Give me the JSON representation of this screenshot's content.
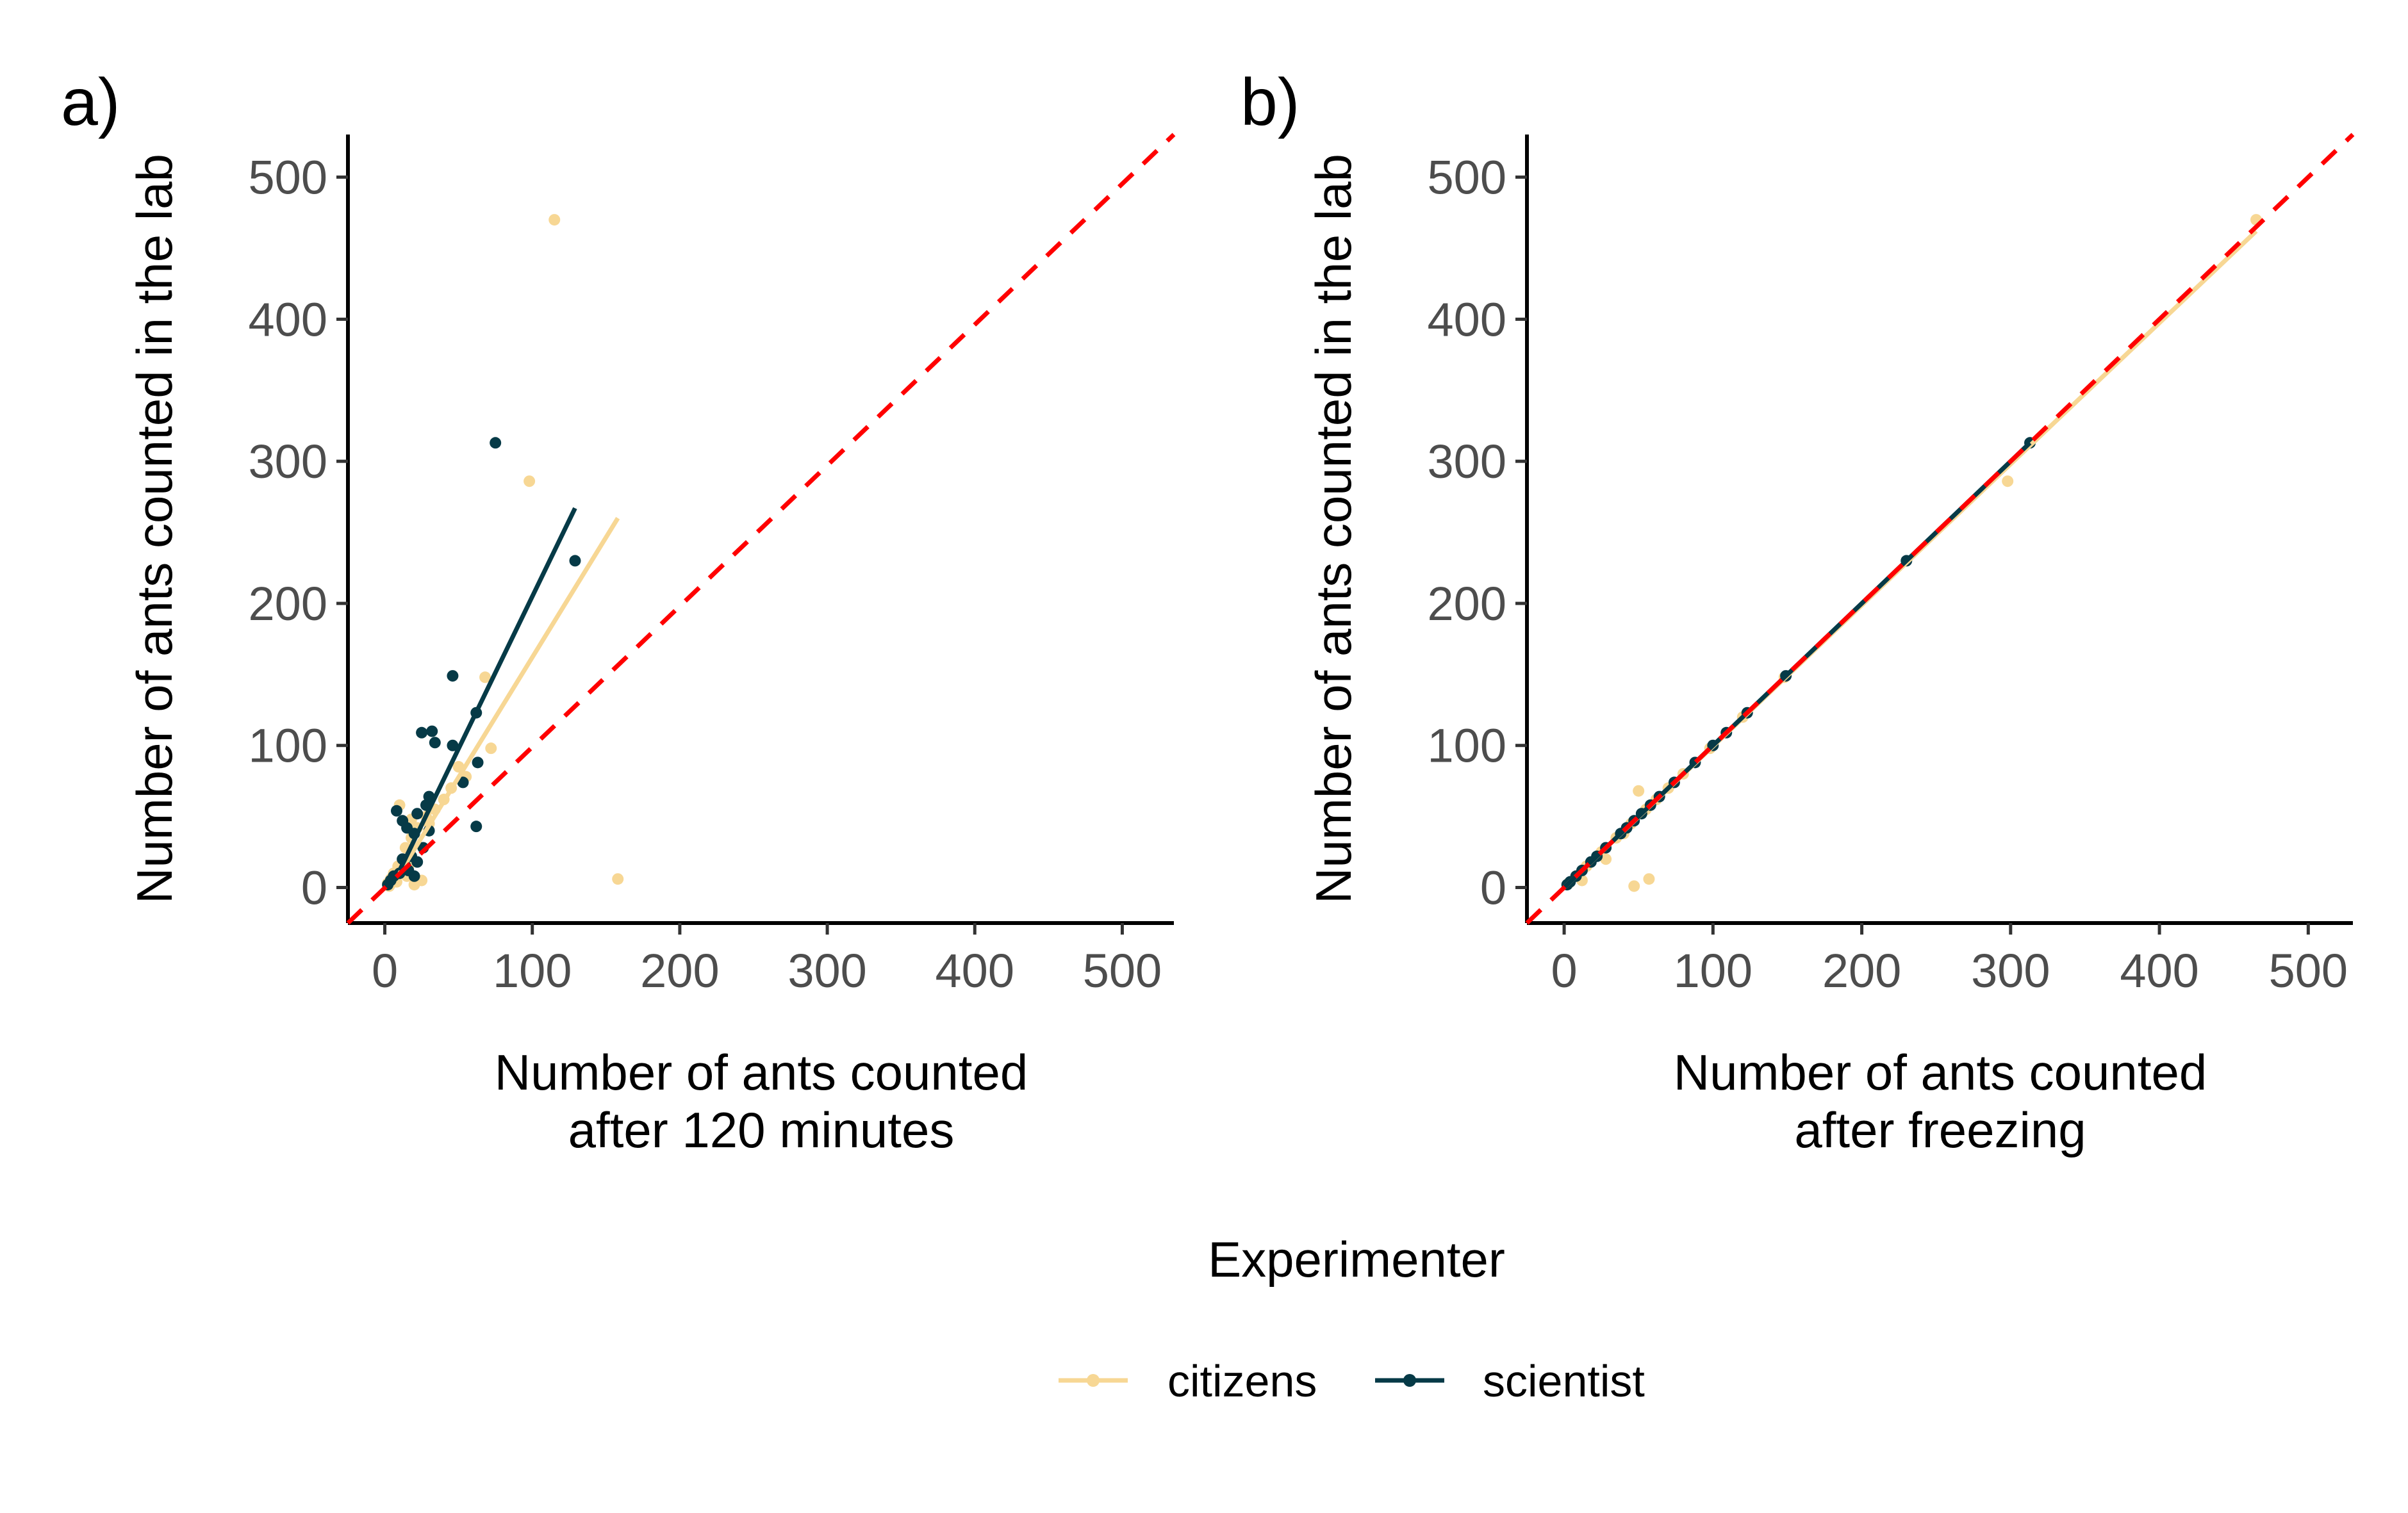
{
  "chart_data": [
    {
      "type": "scatter",
      "panel_label": "a)",
      "xlabel": [
        "Number of ants counted",
        "after 120 minutes"
      ],
      "ylabel": "Number of ants counted in the lab",
      "xlim": [
        -25,
        535
      ],
      "ylim": [
        -25,
        530
      ],
      "xticks": [
        0,
        100,
        200,
        300,
        400,
        500
      ],
      "yticks": [
        0,
        100,
        200,
        300,
        400,
        500
      ],
      "grid": false,
      "identity_line": {
        "style": "dashed",
        "color": "#ff0000",
        "from": [
          -25,
          -25
        ],
        "to": [
          535,
          530
        ]
      },
      "series": [
        {
          "name": "citizens",
          "color": "#f7d794",
          "points": [
            [
              115,
              470
            ],
            [
              98,
              286
            ],
            [
              158,
              6
            ],
            [
              68,
              148
            ],
            [
              72,
              98
            ],
            [
              55,
              78
            ],
            [
              45,
              70
            ],
            [
              40,
              62
            ],
            [
              34,
              55
            ],
            [
              28,
              50
            ],
            [
              22,
              42
            ],
            [
              18,
              35
            ],
            [
              14,
              28
            ],
            [
              12,
              20
            ],
            [
              9,
              15
            ],
            [
              6,
              10
            ],
            [
              4,
              6
            ],
            [
              2,
              3
            ],
            [
              20,
              2
            ],
            [
              25,
              5
            ],
            [
              15,
              8
            ],
            [
              30,
              45
            ],
            [
              50,
              85
            ],
            [
              10,
              58
            ],
            [
              18,
              48
            ],
            [
              3,
              1
            ],
            [
              8,
              4
            ],
            [
              16,
              15
            ]
          ],
          "fit": [
            [
              10,
              10
            ],
            [
              158,
              260
            ]
          ]
        },
        {
          "name": "scientist",
          "color": "#063a47",
          "points": [
            [
              75,
              313
            ],
            [
              129,
              230
            ],
            [
              46,
              149
            ],
            [
              62,
              123
            ],
            [
              25,
              109
            ],
            [
              32,
              110
            ],
            [
              34,
              102
            ],
            [
              46,
              100
            ],
            [
              63,
              88
            ],
            [
              53,
              74
            ],
            [
              62,
              43
            ],
            [
              30,
              64
            ],
            [
              28,
              58
            ],
            [
              22,
              52
            ],
            [
              8,
              54
            ],
            [
              12,
              47
            ],
            [
              15,
              42
            ],
            [
              20,
              38
            ],
            [
              30,
              40
            ],
            [
              26,
              28
            ],
            [
              18,
              22
            ],
            [
              12,
              20
            ],
            [
              22,
              18
            ],
            [
              16,
              12
            ],
            [
              10,
              10
            ],
            [
              6,
              8
            ],
            [
              4,
              5
            ],
            [
              2,
              2
            ],
            [
              20,
              8
            ],
            [
              14,
              15
            ]
          ],
          "fit": [
            [
              10,
              12
            ],
            [
              129,
              267
            ]
          ]
        }
      ]
    },
    {
      "type": "scatter",
      "panel_label": "b)",
      "xlabel": [
        "Number of ants counted",
        "after freezing"
      ],
      "ylabel": "Number of ants counted in the lab",
      "xlim": [
        -25,
        530
      ],
      "ylim": [
        -25,
        530
      ],
      "xticks": [
        0,
        100,
        200,
        300,
        400,
        500
      ],
      "yticks": [
        0,
        100,
        200,
        300,
        400,
        500
      ],
      "grid": false,
      "identity_line": {
        "style": "dashed",
        "color": "#ff0000",
        "from": [
          -25,
          -25
        ],
        "to": [
          530,
          530
        ]
      },
      "series": [
        {
          "name": "citizens",
          "color": "#f7d794",
          "points": [
            [
              465,
              470
            ],
            [
              298,
              286
            ],
            [
              57,
              6
            ],
            [
              47,
              1
            ],
            [
              50,
              68
            ],
            [
              148,
              148
            ],
            [
              98,
              98
            ],
            [
              70,
              70
            ],
            [
              62,
              62
            ],
            [
              55,
              55
            ],
            [
              45,
              45
            ],
            [
              35,
              35
            ],
            [
              25,
              25
            ],
            [
              15,
              15
            ],
            [
              8,
              8
            ],
            [
              3,
              3
            ],
            [
              12,
              5
            ],
            [
              28,
              20
            ],
            [
              80,
              80
            ],
            [
              120,
              120
            ],
            [
              40,
              38
            ]
          ],
          "fit": [
            [
              0,
              0
            ],
            [
              465,
              462
            ]
          ]
        },
        {
          "name": "scientist",
          "color": "#063a47",
          "points": [
            [
              313,
              313
            ],
            [
              230,
              230
            ],
            [
              149,
              149
            ],
            [
              123,
              123
            ],
            [
              109,
              109
            ],
            [
              100,
              100
            ],
            [
              88,
              88
            ],
            [
              74,
              74
            ],
            [
              64,
              64
            ],
            [
              58,
              58
            ],
            [
              52,
              52
            ],
            [
              47,
              47
            ],
            [
              42,
              42
            ],
            [
              38,
              38
            ],
            [
              28,
              28
            ],
            [
              22,
              22
            ],
            [
              18,
              18
            ],
            [
              12,
              12
            ],
            [
              8,
              8
            ],
            [
              4,
              4
            ],
            [
              2,
              2
            ]
          ],
          "fit": [
            [
              0,
              0
            ],
            [
              313,
              313
            ]
          ]
        }
      ]
    }
  ],
  "legend": {
    "title": "Experimenter",
    "placement": "bottom",
    "entries": [
      {
        "label": "citizens",
        "color": "#f7d794"
      },
      {
        "label": "scientist",
        "color": "#063a47"
      }
    ]
  }
}
